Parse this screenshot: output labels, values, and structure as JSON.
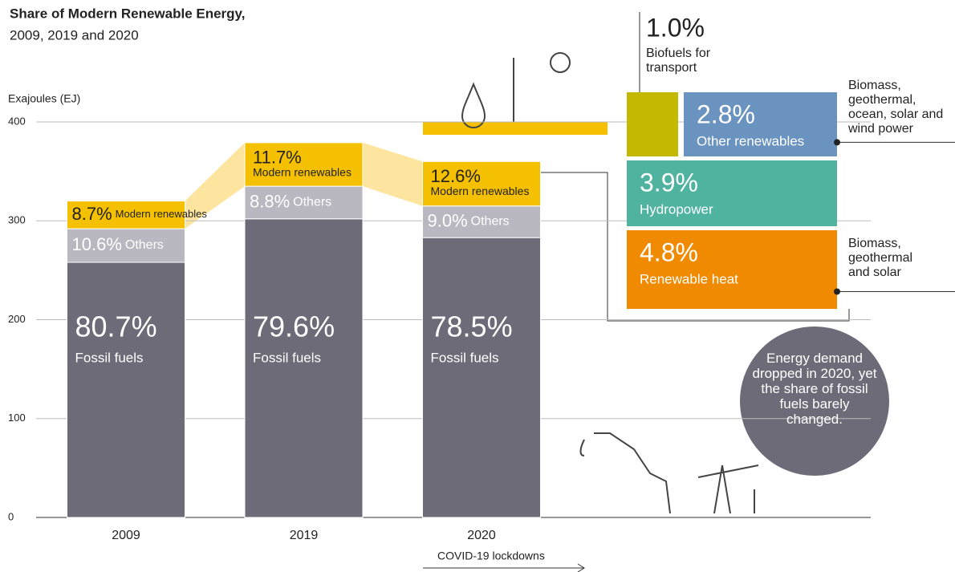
{
  "chart_data": {
    "type": "bar",
    "stacked": true,
    "title": "Share of Modern Renewable Energy,",
    "subtitle": "2009, 2019 and 2020",
    "y_label": "Exajoules (EJ)",
    "categories": [
      "2009",
      "2019",
      "2020"
    ],
    "ylim": [
      0,
      400
    ],
    "yticks": [
      0,
      100,
      200,
      300,
      400
    ],
    "grid": true,
    "series": [
      {
        "name": "Fossil fuels",
        "color": "#6e6b78",
        "values": [
          258,
          302,
          283
        ],
        "shares": [
          "80.7%",
          "79.6%",
          "78.5%"
        ]
      },
      {
        "name": "Others",
        "color": "#b9b8c0",
        "values": [
          34,
          33,
          32
        ],
        "shares": [
          "10.6%",
          "8.8%",
          "9.0%"
        ]
      },
      {
        "name": "Modern renewables",
        "color": "#f5c000",
        "values": [
          28,
          44,
          45
        ],
        "shares": [
          "8.7%",
          "11.7%",
          "12.6%"
        ]
      }
    ],
    "annotation": "COVID-19 lockdowns"
  },
  "breakdown": {
    "items": [
      {
        "share": "1.0%",
        "name": "Biofuels for transport",
        "color": "#c4b800"
      },
      {
        "share": "2.8%",
        "name": "Other renewables",
        "color": "#6a93c0",
        "note": "Biomass, geothermal, ocean, solar and wind power"
      },
      {
        "share": "3.9%",
        "name": "Hydropower",
        "color": "#4fb3a0"
      },
      {
        "share": "4.8%",
        "name": "Renewable heat",
        "color": "#f08a00",
        "note": "Biomass, geothermal and solar"
      }
    ]
  },
  "callout": "Energy demand dropped in 2020, yet the share of fossil fuels barely changed."
}
